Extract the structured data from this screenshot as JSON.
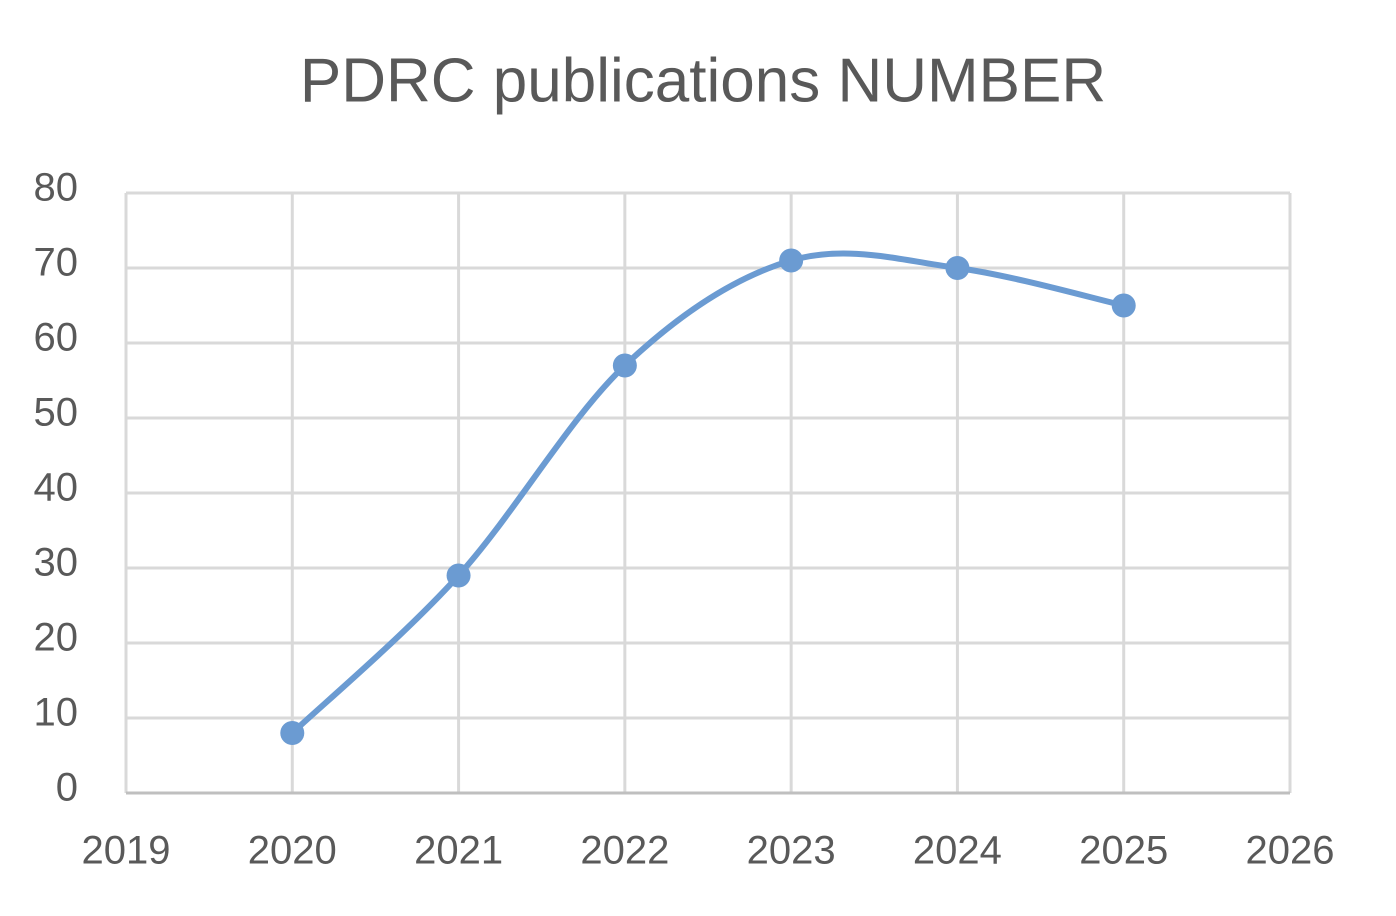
{
  "chart_data": {
    "type": "line",
    "title": "PDRC publications NUMBER",
    "x": [
      2020,
      2021,
      2022,
      2023,
      2024,
      2025
    ],
    "series": [
      {
        "name": "PDRC publications",
        "color": "#6b9bd2",
        "values": [
          8,
          29,
          57,
          71,
          70,
          65
        ]
      }
    ],
    "xlim": [
      2019,
      2026
    ],
    "xticks": [
      2019,
      2020,
      2021,
      2022,
      2023,
      2024,
      2025,
      2026
    ],
    "ylim": [
      0,
      80
    ],
    "yticks": [
      0,
      10,
      20,
      30,
      40,
      50,
      60,
      70,
      80
    ],
    "grid": true,
    "smooth": true
  }
}
